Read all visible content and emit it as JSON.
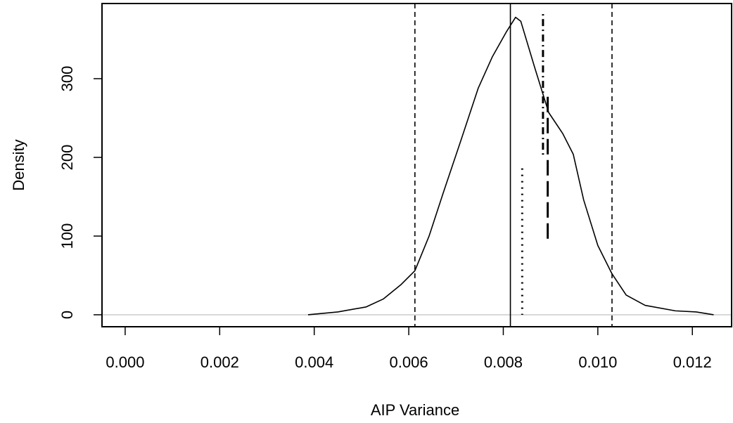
{
  "chart_data": {
    "type": "line",
    "x_label": "AIP Variance",
    "y_label": "Density",
    "x": [
      0.00387,
      0.0045,
      0.0051,
      0.00546,
      0.00583,
      0.00613,
      0.00643,
      0.00673,
      0.0071,
      0.00747,
      0.00777,
      0.00807,
      0.00826,
      0.00837,
      0.00866,
      0.00896,
      0.00926,
      0.00948,
      0.0097,
      0.01,
      0.0103,
      0.0106,
      0.011,
      0.01164,
      0.01208,
      0.01245
    ],
    "series": [
      {
        "color": "#000000",
        "values": [
          0,
          3.6,
          10,
          20,
          38,
          56,
          100,
          155,
          221,
          288,
          328,
          360,
          378,
          373,
          315,
          257,
          230,
          204,
          146,
          88,
          52,
          25,
          12,
          5,
          3.6,
          0
        ]
      }
    ],
    "xlim": [
      -0.00049,
      0.01283
    ],
    "ylim": [
      -15.2,
      395.5
    ],
    "xticks": [
      {
        "value": 0,
        "label": "0.000"
      },
      {
        "value": 0.002,
        "label": "0.002"
      },
      {
        "value": 0.004,
        "label": "0.004"
      },
      {
        "value": 0.006,
        "label": "0.006"
      },
      {
        "value": 0.008,
        "label": "0.008"
      },
      {
        "value": 0.01,
        "label": "0.010"
      },
      {
        "value": 0.012,
        "label": "0.012"
      }
    ],
    "yticks": [
      0,
      100,
      200,
      300
    ],
    "baseline": 0,
    "baseline_color": "#cccccc",
    "vlines": [
      {
        "x": 0.00613,
        "style": "dashed"
      },
      {
        "x": 0.0103,
        "style": "dashed"
      },
      {
        "x": 0.00815,
        "style": "solid"
      },
      {
        "x": 0.0084,
        "style": "dotted",
        "ymin": 0,
        "ymax": 186
      },
      {
        "x": 0.00884,
        "style": "dotdash",
        "ymin": 200,
        "ymax": 382
      },
      {
        "x": 0.00894,
        "style": "longdash",
        "ymin": 92,
        "ymax": 277
      }
    ]
  }
}
